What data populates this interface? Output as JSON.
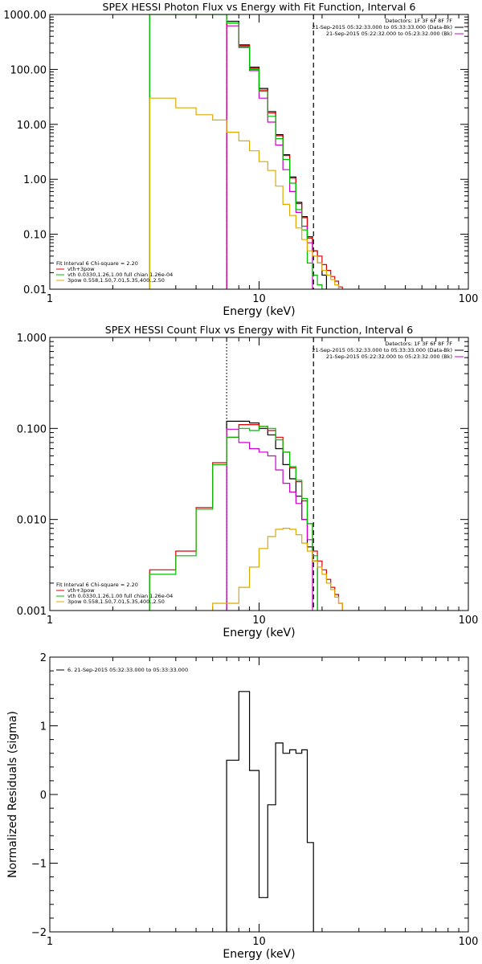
{
  "chart_data": [
    {
      "type": "line",
      "title": "SPEX HESSI Photon Flux vs Energy with Fit Function, Interval 6",
      "xlabel": "Energy (keV)",
      "ylabel": "",
      "xscale": "log",
      "yscale": "log",
      "xlim": [
        1,
        100
      ],
      "ylim": [
        0.01,
        1000
      ],
      "xticks": [
        {
          "v": 1,
          "label": "1"
        },
        {
          "v": 10,
          "label": "10"
        },
        {
          "v": 100,
          "label": "100"
        }
      ],
      "yticks": [
        {
          "v": 0.01,
          "label": "0.01"
        },
        {
          "v": 0.1,
          "label": "0.10"
        },
        {
          "v": 1,
          "label": "1.00"
        },
        {
          "v": 10,
          "label": "10.00"
        },
        {
          "v": 100,
          "label": "100.00"
        },
        {
          "v": 1000,
          "label": "1000.00"
        }
      ],
      "corner_text": [
        "Detectors: 1F 3F 6F 8F 7F",
        "21-Sep-2015 05:32:33.000 to 05:33:33.000 (Data-Bk)",
        "21-Sep-2015 05:22:32.000 to 05:23:32.000 (Bk)"
      ],
      "corner_colors": [
        "",
        "#000000",
        "#cc00cc"
      ],
      "legend_lines": [
        "Fit Interval 6   Chi-square = 2.20",
        "vth+3pow",
        "vth 0.0330,1.26,1.00  full chian 1.26e-04",
        "3pow 0.558,1.50,7.01,5.35,400.,2.50"
      ],
      "legend_colors": [
        "",
        "#dd0000",
        "#00bb00",
        "#ddaa00"
      ],
      "vlines": [
        {
          "x": 3.0,
          "color": "#00bb00",
          "style": "solid"
        },
        {
          "x": 7.0,
          "color": "#cc00cc",
          "style": "dash"
        },
        {
          "x": 7.0,
          "color": "#000000",
          "style": "dot"
        },
        {
          "x": 18.2,
          "color": "#000000",
          "style": "dash"
        }
      ],
      "series": [
        {
          "color": "#000000",
          "edges": [
            7,
            8,
            9,
            10,
            11,
            12,
            13,
            14,
            15,
            16,
            17,
            18,
            19,
            20,
            21
          ],
          "values": [
            750,
            280,
            110,
            45,
            17,
            6.5,
            2.8,
            1.1,
            0.38,
            0.21,
            0.09,
            0.05,
            0.03,
            0.018
          ]
        },
        {
          "color": "#dd0000",
          "edges": [
            7,
            8,
            9,
            10,
            11,
            12,
            13,
            14,
            15,
            16,
            17,
            18,
            19,
            20,
            21,
            22,
            23,
            24,
            25
          ],
          "values": [
            700,
            270,
            105,
            42,
            16,
            6.2,
            2.7,
            1.05,
            0.36,
            0.2,
            0.085,
            0.05,
            0.04,
            0.028,
            0.022,
            0.017,
            0.014,
            0.011
          ]
        },
        {
          "color": "#cc00cc",
          "edges": [
            7,
            8,
            9,
            10,
            11,
            12,
            13,
            14,
            15,
            16,
            17,
            18
          ],
          "values": [
            620,
            250,
            95,
            30,
            11,
            4.2,
            1.5,
            0.6,
            0.25,
            0.14,
            0.07
          ]
        },
        {
          "color": "#00bb00",
          "edges": [
            3,
            4,
            5,
            6,
            7,
            8,
            9,
            10,
            11,
            12,
            13,
            14,
            15,
            16,
            17,
            18,
            19,
            20,
            21
          ],
          "values": [
            1000,
            1000,
            1000,
            1000,
            700,
            260,
            100,
            40,
            14,
            5.5,
            2.3,
            0.85,
            0.28,
            0.12,
            0.03,
            0.018,
            0.012,
            0.01
          ]
        },
        {
          "color": "#ddaa00",
          "edges": [
            3,
            4,
            5,
            6,
            7,
            8,
            9,
            10,
            11,
            12,
            13,
            14,
            15,
            16,
            17,
            18,
            19,
            20,
            21,
            22,
            23,
            24,
            25
          ],
          "values": [
            30,
            20,
            15,
            12,
            7.2,
            5.0,
            3.3,
            2.1,
            1.45,
            0.75,
            0.35,
            0.22,
            0.13,
            0.08,
            0.05,
            0.04,
            0.03,
            0.022,
            0.018,
            0.015,
            0.012,
            0.01
          ]
        }
      ]
    },
    {
      "type": "line",
      "title": "SPEX HESSI Count Flux vs Energy with Fit Function, Interval 6",
      "xlabel": "Energy (keV)",
      "ylabel": "",
      "xscale": "log",
      "yscale": "log",
      "xlim": [
        1,
        100
      ],
      "ylim": [
        0.001,
        1
      ],
      "xticks": [
        {
          "v": 1,
          "label": "1"
        },
        {
          "v": 10,
          "label": "10"
        },
        {
          "v": 100,
          "label": "100"
        }
      ],
      "yticks": [
        {
          "v": 0.001,
          "label": "0.001"
        },
        {
          "v": 0.01,
          "label": "0.010"
        },
        {
          "v": 0.1,
          "label": "0.100"
        },
        {
          "v": 1,
          "label": "1.000"
        }
      ],
      "corner_text": [
        "Detectors: 1F 3F 6F 8F 7F",
        "21-Sep-2015 05:32:33.000 to 05:33:33.000 (Data-Bk)",
        "21-Sep-2015 05:22:32.000 to 05:23:32.000 (Bk)"
      ],
      "corner_colors": [
        "",
        "#000000",
        "#cc00cc"
      ],
      "legend_lines": [
        "Fit Interval 6   Chi-square = 2.20",
        "vth+3pow",
        "vth 0.0330,1.26,1.00  full chian 1.26e-04",
        "3pow 0.558,1.50,7.01,5.35,400.,2.50"
      ],
      "legend_colors": [
        "",
        "#dd0000",
        "#00bb00",
        "#ddaa00"
      ],
      "vlines": [
        {
          "x": 7.0,
          "color": "#000000",
          "style": "dot"
        },
        {
          "x": 18.2,
          "color": "#000000",
          "style": "dash"
        }
      ],
      "series": [
        {
          "color": "#000000",
          "edges": [
            7,
            8,
            9,
            10,
            11,
            12,
            13,
            14,
            15,
            16,
            17,
            18,
            19
          ],
          "values": [
            0.12,
            0.12,
            0.115,
            0.1,
            0.085,
            0.06,
            0.04,
            0.028,
            0.018,
            0.01,
            0.005,
            0.0035
          ]
        },
        {
          "color": "#dd0000",
          "edges": [
            3,
            4,
            5,
            6,
            7,
            8,
            9,
            10,
            11,
            12,
            13,
            14,
            15,
            16,
            17,
            18,
            19,
            20,
            21,
            22,
            23,
            24,
            25
          ],
          "values": [
            0.0028,
            0.0045,
            0.0135,
            0.042,
            0.08,
            0.11,
            0.11,
            0.105,
            0.095,
            0.08,
            0.055,
            0.037,
            0.026,
            0.016,
            0.009,
            0.0045,
            0.0035,
            0.0028,
            0.0022,
            0.0018,
            0.0015,
            0.0012
          ]
        },
        {
          "color": "#cc00cc",
          "edges": [
            7,
            8,
            9,
            10,
            11,
            12,
            13,
            14,
            15,
            16,
            17,
            18
          ],
          "values": [
            0.098,
            0.07,
            0.06,
            0.055,
            0.05,
            0.035,
            0.025,
            0.02,
            0.015,
            0.01,
            0.006
          ]
        },
        {
          "color": "#00bb00",
          "edges": [
            3,
            4,
            5,
            6,
            7,
            8,
            9,
            10,
            11,
            12,
            13,
            14,
            15,
            16,
            17,
            18,
            19
          ],
          "values": [
            0.0025,
            0.004,
            0.013,
            0.04,
            0.08,
            0.1,
            0.095,
            0.105,
            0.1,
            0.075,
            0.055,
            0.038,
            0.027,
            0.017,
            0.009,
            0.004
          ]
        },
        {
          "color": "#ddaa00",
          "edges": [
            6,
            7,
            8,
            9,
            10,
            11,
            12,
            13,
            14,
            15,
            16,
            17,
            18,
            19,
            20,
            21,
            22,
            23,
            24,
            25
          ],
          "values": [
            0.0012,
            0.0012,
            0.0018,
            0.003,
            0.0048,
            0.0065,
            0.0078,
            0.008,
            0.0078,
            0.0068,
            0.0055,
            0.0045,
            0.0035,
            0.003,
            0.0025,
            0.002,
            0.0017,
            0.0014,
            0.0012
          ]
        }
      ]
    },
    {
      "type": "line",
      "title": "",
      "xlabel": "Energy (keV)",
      "ylabel": "Normalized Residuals (sigma)",
      "xscale": "log",
      "yscale": "linear",
      "xlim": [
        1,
        100
      ],
      "ylim": [
        -2,
        2
      ],
      "xticks": [
        {
          "v": 1,
          "label": "1"
        },
        {
          "v": 10,
          "label": "10"
        },
        {
          "v": 100,
          "label": "100"
        }
      ],
      "yticks": [
        {
          "v": -2,
          "label": "−2"
        },
        {
          "v": -1,
          "label": "−1"
        },
        {
          "v": 0,
          "label": "0"
        },
        {
          "v": 1,
          "label": "1"
        },
        {
          "v": 2,
          "label": "2"
        }
      ],
      "legend_lines": [
        "6. 21-Sep-2015 05:32:33.000 to 05:33:33.000"
      ],
      "legend_colors": [
        "#000000"
      ],
      "series": [
        {
          "color": "#000000",
          "edges": [
            7,
            7.5,
            8,
            9,
            10,
            11,
            12,
            13,
            14,
            15,
            16,
            17,
            18.2
          ],
          "values": [
            0.5,
            0.5,
            1.5,
            0.35,
            -1.5,
            -0.15,
            0.75,
            0.6,
            0.65,
            0.6,
            0.65,
            -0.7
          ],
          "baseline": -2
        }
      ]
    }
  ]
}
